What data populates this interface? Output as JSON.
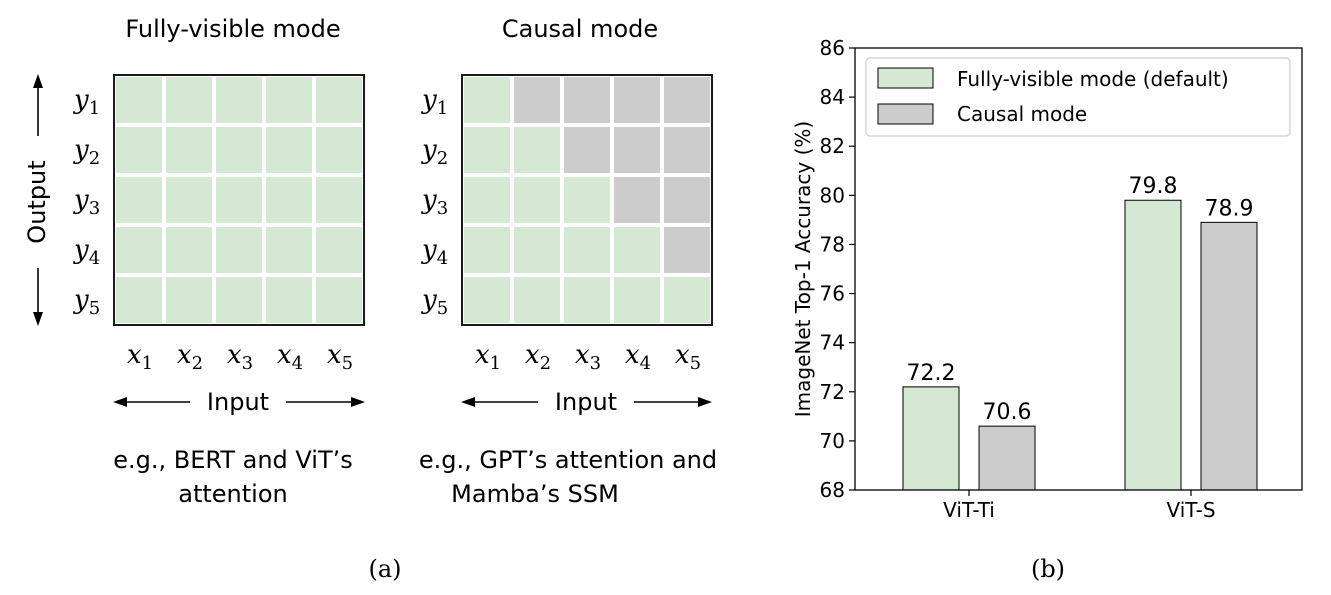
{
  "panel_a": {
    "caption": "(a)",
    "input_label": "Input",
    "output_label": "Output",
    "row_labels": [
      {
        "base": "y",
        "sub": "1"
      },
      {
        "base": "y",
        "sub": "2"
      },
      {
        "base": "y",
        "sub": "3"
      },
      {
        "base": "y",
        "sub": "4"
      },
      {
        "base": "y",
        "sub": "5"
      }
    ],
    "col_labels": [
      {
        "base": "x",
        "sub": "1"
      },
      {
        "base": "x",
        "sub": "2"
      },
      {
        "base": "x",
        "sub": "3"
      },
      {
        "base": "x",
        "sub": "4"
      },
      {
        "base": "x",
        "sub": "5"
      }
    ],
    "colors": {
      "visible": "#d5e8d4",
      "masked": "#cccccc"
    },
    "fully_visible": {
      "title": "Fully-visible mode",
      "desc_line1": "e.g., BERT and ViT’s",
      "desc_line2": "attention",
      "mask": [
        [
          1,
          1,
          1,
          1,
          1
        ],
        [
          1,
          1,
          1,
          1,
          1
        ],
        [
          1,
          1,
          1,
          1,
          1
        ],
        [
          1,
          1,
          1,
          1,
          1
        ],
        [
          1,
          1,
          1,
          1,
          1
        ]
      ]
    },
    "causal": {
      "title": "Causal mode",
      "desc_line1": "e.g., GPT’s attention and",
      "desc_line2": "Mamba’s SSM",
      "mask": [
        [
          1,
          0,
          0,
          0,
          0
        ],
        [
          1,
          1,
          0,
          0,
          0
        ],
        [
          1,
          1,
          1,
          0,
          0
        ],
        [
          1,
          1,
          1,
          1,
          0
        ],
        [
          1,
          1,
          1,
          1,
          1
        ]
      ]
    }
  },
  "panel_b": {
    "caption": "(b)"
  },
  "chart_data": {
    "type": "bar",
    "categories": [
      "ViT-Ti",
      "ViT-S"
    ],
    "series": [
      {
        "name": "Fully-visible mode (default)",
        "values": [
          72.2,
          79.8
        ],
        "labels": [
          "72.2",
          "79.8"
        ],
        "color": "#d5e8d4"
      },
      {
        "name": "Causal mode",
        "values": [
          70.6,
          78.9
        ],
        "labels": [
          "70.6",
          "78.9"
        ],
        "color": "#cccccc"
      }
    ],
    "title": "",
    "xlabel": "",
    "ylabel": "ImageNet Top-1 Accuracy (%)",
    "ylim": [
      68,
      86
    ],
    "yticks": [
      68,
      70,
      72,
      74,
      76,
      78,
      80,
      82,
      84,
      86
    ],
    "grid": false,
    "legend_position": "top-right"
  }
}
